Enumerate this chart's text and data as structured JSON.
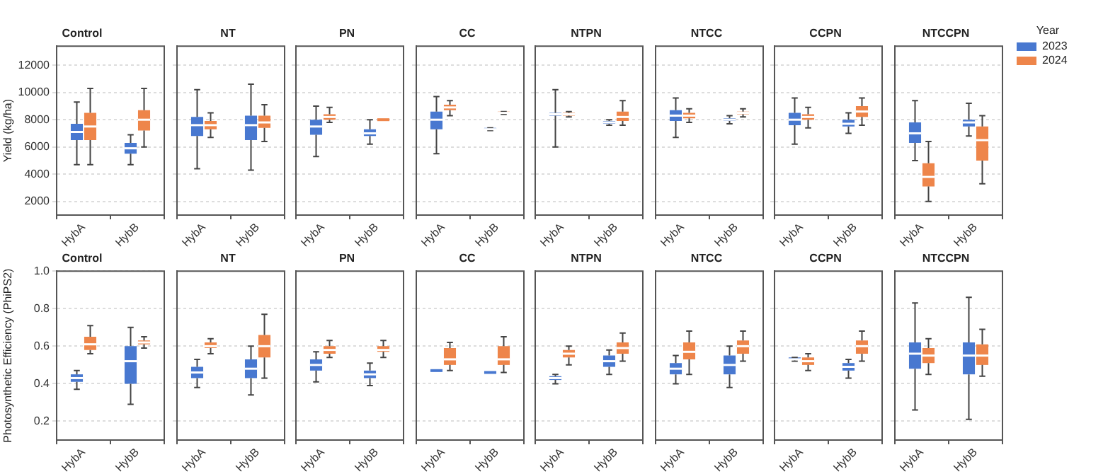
{
  "chart_data": [
    {
      "type": "box",
      "title": "Control",
      "ylabel": "Yield (kg/ha)",
      "categories": [
        "HybA",
        "HybB"
      ],
      "ylim": [
        1000,
        13400
      ],
      "yticks": [
        2000,
        4000,
        6000,
        8000,
        10000,
        12000
      ],
      "grid": "y",
      "series": [
        {
          "color": "#4878d0",
          "boxes": [
            {
              "low": 4700,
              "q1": 6500,
              "median": 7100,
              "q3": 7700,
              "high": 9300
            },
            {
              "low": 4700,
              "q1": 5500,
              "median": 5900,
              "q3": 6300,
              "high": 6900
            }
          ]
        },
        {
          "color": "#ee854a",
          "boxes": [
            {
              "low": 4700,
              "q1": 6500,
              "median": 7500,
              "q3": 8500,
              "high": 10300
            },
            {
              "low": 6000,
              "q1": 7200,
              "median": 8000,
              "q3": 8700,
              "high": 10300
            }
          ]
        }
      ]
    },
    {
      "type": "box",
      "title": "NT",
      "categories": [
        "HybA",
        "HybB"
      ],
      "ylim": [
        1000,
        13400
      ],
      "yticks": [
        2000,
        4000,
        6000,
        8000,
        10000,
        12000
      ],
      "grid": "y",
      "tick_labels": "x",
      "series": [
        {
          "color": "#4878d0",
          "boxes": [
            {
              "low": 4400,
              "q1": 6800,
              "median": 7600,
              "q3": 8200,
              "high": 10200
            },
            {
              "low": 4300,
              "q1": 6500,
              "median": 7600,
              "q3": 8300,
              "high": 10600
            }
          ]
        },
        {
          "color": "#ee854a",
          "boxes": [
            {
              "low": 6700,
              "q1": 7300,
              "median": 7600,
              "q3": 7900,
              "high": 8500
            },
            {
              "low": 6400,
              "q1": 7400,
              "median": 7800,
              "q3": 8300,
              "high": 9100
            }
          ]
        }
      ]
    },
    {
      "type": "box",
      "title": "PN",
      "categories": [
        "HybA",
        "HybB"
      ],
      "ylim": [
        1000,
        13400
      ],
      "yticks": [
        2000,
        4000,
        6000,
        8000,
        10000,
        12000
      ],
      "grid": "y",
      "tick_labels": "x",
      "series": [
        {
          "color": "#4878d0",
          "boxes": [
            {
              "low": 5300,
              "q1": 6900,
              "median": 7500,
              "q3": 8000,
              "high": 9000
            },
            {
              "low": 6200,
              "q1": 6800,
              "median": 7000,
              "q3": 7300,
              "high": 8000
            }
          ]
        },
        {
          "color": "#ee854a",
          "boxes": [
            {
              "low": 7800,
              "q1": 8000,
              "median": 8200,
              "q3": 8400,
              "high": 8900
            },
            {
              "low": 8000,
              "q1": 8000,
              "median": 8000,
              "q3": 8000,
              "high": 8000
            }
          ]
        }
      ]
    },
    {
      "type": "box",
      "title": "CC",
      "categories": [
        "HybA",
        "HybB"
      ],
      "ylim": [
        1000,
        13400
      ],
      "yticks": [
        2000,
        4000,
        6000,
        8000,
        10000,
        12000
      ],
      "grid": "y",
      "tick_labels": "x",
      "series": [
        {
          "color": "#4878d0",
          "boxes": [
            {
              "low": 5500,
              "q1": 7300,
              "median": 8000,
              "q3": 8600,
              "high": 9700
            },
            {
              "low": 7200,
              "q1": 7300,
              "median": 7300,
              "q3": 7400,
              "high": 7400
            }
          ]
        },
        {
          "color": "#ee854a",
          "boxes": [
            {
              "low": 8300,
              "q1": 8700,
              "median": 8900,
              "q3": 9100,
              "high": 9400
            },
            {
              "low": 8400,
              "q1": 8500,
              "median": 8500,
              "q3": 8600,
              "high": 8600
            }
          ]
        }
      ]
    },
    {
      "type": "box",
      "title": "NTPN",
      "categories": [
        "HybA",
        "HybB"
      ],
      "ylim": [
        1000,
        13400
      ],
      "yticks": [
        2000,
        4000,
        6000,
        8000,
        10000,
        12000
      ],
      "grid": "y",
      "tick_labels": "x",
      "series": [
        {
          "color": "#4878d0",
          "boxes": [
            {
              "low": 6000,
              "q1": 8300,
              "median": 8400,
              "q3": 8500,
              "high": 10200
            },
            {
              "low": 7600,
              "q1": 7700,
              "median": 7800,
              "q3": 7900,
              "high": 8000
            }
          ]
        },
        {
          "color": "#ee854a",
          "boxes": [
            {
              "low": 8200,
              "q1": 8300,
              "median": 8400,
              "q3": 8500,
              "high": 8600
            },
            {
              "low": 7600,
              "q1": 7900,
              "median": 8200,
              "q3": 8600,
              "high": 9400
            }
          ]
        }
      ]
    },
    {
      "type": "box",
      "title": "NTCC",
      "categories": [
        "HybA",
        "HybB"
      ],
      "ylim": [
        1000,
        13400
      ],
      "yticks": [
        2000,
        4000,
        6000,
        8000,
        10000,
        12000
      ],
      "grid": "y",
      "tick_labels": "x",
      "series": [
        {
          "color": "#4878d0",
          "boxes": [
            {
              "low": 6700,
              "q1": 7900,
              "median": 8300,
              "q3": 8700,
              "high": 9600
            },
            {
              "low": 7700,
              "q1": 7900,
              "median": 8000,
              "q3": 8100,
              "high": 8300
            }
          ]
        },
        {
          "color": "#ee854a",
          "boxes": [
            {
              "low": 7800,
              "q1": 8100,
              "median": 8300,
              "q3": 8500,
              "high": 8800
            },
            {
              "low": 8200,
              "q1": 8400,
              "median": 8500,
              "q3": 8600,
              "high": 8800
            }
          ]
        }
      ]
    },
    {
      "type": "box",
      "title": "CCPN",
      "categories": [
        "HybA",
        "HybB"
      ],
      "ylim": [
        1000,
        13400
      ],
      "yticks": [
        2000,
        4000,
        6000,
        8000,
        10000,
        12000
      ],
      "grid": "y",
      "tick_labels": "x",
      "series": [
        {
          "color": "#4878d0",
          "boxes": [
            {
              "low": 6200,
              "q1": 7600,
              "median": 8000,
              "q3": 8500,
              "high": 9600
            },
            {
              "low": 7000,
              "q1": 7500,
              "median": 7700,
              "q3": 8000,
              "high": 8500
            }
          ]
        },
        {
          "color": "#ee854a",
          "boxes": [
            {
              "low": 7400,
              "q1": 8000,
              "median": 8200,
              "q3": 8400,
              "high": 8900
            },
            {
              "low": 7600,
              "q1": 8200,
              "median": 8600,
              "q3": 9000,
              "high": 9600
            }
          ]
        }
      ]
    },
    {
      "type": "box",
      "title": "NTCCPN",
      "categories": [
        "HybA",
        "HybB"
      ],
      "ylim": [
        1000,
        13400
      ],
      "yticks": [
        2000,
        4000,
        6000,
        8000,
        10000,
        12000
      ],
      "grid": "y",
      "tick_labels": "x",
      "legend": "top right",
      "legend_title": "Year",
      "series": [
        {
          "name": "2023",
          "color": "#4878d0",
          "boxes": [
            {
              "low": 5000,
              "q1": 6300,
              "median": 7000,
              "q3": 7800,
              "high": 9400
            },
            {
              "low": 6800,
              "q1": 7500,
              "median": 7800,
              "q3": 8000,
              "high": 9200
            }
          ]
        },
        {
          "name": "2024",
          "color": "#ee854a",
          "boxes": [
            {
              "low": 2000,
              "q1": 3100,
              "median": 3800,
              "q3": 4800,
              "high": 6400
            },
            {
              "low": 3300,
              "q1": 5000,
              "median": 6500,
              "q3": 7500,
              "high": 8300
            }
          ]
        }
      ]
    },
    {
      "type": "box",
      "title": "Control",
      "ylabel": "Photosynthetic Efficiency (PhiPS2)",
      "categories": [
        "HybA",
        "HybB"
      ],
      "ylim": [
        0.1,
        1.0
      ],
      "yticks": [
        0.2,
        0.4,
        0.6,
        0.8,
        {
          "value": 1,
          "label": "1.0"
        }
      ],
      "grid": "y",
      "series": [
        {
          "color": "#4878d0",
          "boxes": [
            {
              "low": 0.37,
              "q1": 0.41,
              "median": 0.43,
              "q3": 0.45,
              "high": 0.47
            },
            {
              "low": 0.29,
              "q1": 0.4,
              "median": 0.52,
              "q3": 0.6,
              "high": 0.7
            }
          ]
        },
        {
          "color": "#ee854a",
          "boxes": [
            {
              "low": 0.56,
              "q1": 0.58,
              "median": 0.61,
              "q3": 0.65,
              "high": 0.71
            },
            {
              "low": 0.59,
              "q1": 0.61,
              "median": 0.62,
              "q3": 0.63,
              "high": 0.65
            }
          ]
        }
      ]
    },
    {
      "type": "box",
      "title": "NT",
      "categories": [
        "HybA",
        "HybB"
      ],
      "ylim": [
        0.1,
        1.0
      ],
      "yticks": [
        0.2,
        0.4,
        0.6,
        0.8
      ],
      "grid": "y",
      "tick_labels": "x",
      "series": [
        {
          "color": "#4878d0",
          "boxes": [
            {
              "low": 0.38,
              "q1": 0.43,
              "median": 0.46,
              "q3": 0.49,
              "high": 0.53
            },
            {
              "low": 0.34,
              "q1": 0.43,
              "median": 0.48,
              "q3": 0.53,
              "high": 0.6
            }
          ]
        },
        {
          "color": "#ee854a",
          "boxes": [
            {
              "low": 0.56,
              "q1": 0.59,
              "median": 0.6,
              "q3": 0.62,
              "high": 0.64
            },
            {
              "low": 0.43,
              "q1": 0.54,
              "median": 0.6,
              "q3": 0.66,
              "high": 0.77
            }
          ]
        }
      ]
    },
    {
      "type": "box",
      "title": "PN",
      "categories": [
        "HybA",
        "HybB"
      ],
      "ylim": [
        0.1,
        1.0
      ],
      "yticks": [
        0.2,
        0.4,
        0.6,
        0.8
      ],
      "grid": "y",
      "tick_labels": "x",
      "series": [
        {
          "color": "#4878d0",
          "boxes": [
            {
              "low": 0.41,
              "q1": 0.47,
              "median": 0.5,
              "q3": 0.53,
              "high": 0.57
            },
            {
              "low": 0.39,
              "q1": 0.43,
              "median": 0.45,
              "q3": 0.47,
              "high": 0.51
            }
          ]
        },
        {
          "color": "#ee854a",
          "boxes": [
            {
              "low": 0.54,
              "q1": 0.56,
              "median": 0.58,
              "q3": 0.6,
              "high": 0.63
            },
            {
              "low": 0.54,
              "q1": 0.57,
              "median": 0.58,
              "q3": 0.6,
              "high": 0.63
            }
          ]
        }
      ]
    },
    {
      "type": "box",
      "title": "CC",
      "categories": [
        "HybA",
        "HybB"
      ],
      "ylim": [
        0.1,
        1.0
      ],
      "yticks": [
        0.2,
        0.4,
        0.6,
        0.8
      ],
      "grid": "y",
      "tick_labels": "x",
      "series": [
        {
          "color": "#4878d0",
          "boxes": [
            {
              "low": 0.47,
              "q1": 0.47,
              "median": 0.47,
              "q3": 0.47,
              "high": 0.47
            },
            {
              "low": 0.46,
              "q1": 0.46,
              "median": 0.46,
              "q3": 0.46,
              "high": 0.46
            }
          ]
        },
        {
          "color": "#ee854a",
          "boxes": [
            {
              "low": 0.47,
              "q1": 0.5,
              "median": 0.53,
              "q3": 0.59,
              "high": 0.62
            },
            {
              "low": 0.46,
              "q1": 0.5,
              "median": 0.53,
              "q3": 0.6,
              "high": 0.65
            }
          ]
        }
      ]
    },
    {
      "type": "box",
      "title": "NTPN",
      "categories": [
        "HybA",
        "HybB"
      ],
      "ylim": [
        0.1,
        1.0
      ],
      "yticks": [
        0.2,
        0.4,
        0.6,
        0.8
      ],
      "grid": "y",
      "tick_labels": "x",
      "series": [
        {
          "color": "#4878d0",
          "boxes": [
            {
              "low": 0.4,
              "q1": 0.42,
              "median": 0.43,
              "q3": 0.44,
              "high": 0.45
            },
            {
              "low": 0.45,
              "q1": 0.49,
              "median": 0.52,
              "q3": 0.55,
              "high": 0.58
            }
          ]
        },
        {
          "color": "#ee854a",
          "boxes": [
            {
              "low": 0.5,
              "q1": 0.54,
              "median": 0.56,
              "q3": 0.58,
              "high": 0.6
            },
            {
              "low": 0.52,
              "q1": 0.56,
              "median": 0.59,
              "q3": 0.62,
              "high": 0.67
            }
          ]
        }
      ]
    },
    {
      "type": "box",
      "title": "NTCC",
      "categories": [
        "HybA",
        "HybB"
      ],
      "ylim": [
        0.1,
        1.0
      ],
      "yticks": [
        0.2,
        0.4,
        0.6,
        0.8
      ],
      "grid": "y",
      "tick_labels": "x",
      "series": [
        {
          "color": "#4878d0",
          "boxes": [
            {
              "low": 0.4,
              "q1": 0.45,
              "median": 0.48,
              "q3": 0.51,
              "high": 0.55
            },
            {
              "low": 0.38,
              "q1": 0.45,
              "median": 0.5,
              "q3": 0.55,
              "high": 0.6
            }
          ]
        },
        {
          "color": "#ee854a",
          "boxes": [
            {
              "low": 0.45,
              "q1": 0.53,
              "median": 0.57,
              "q3": 0.62,
              "high": 0.68
            },
            {
              "low": 0.52,
              "q1": 0.56,
              "median": 0.6,
              "q3": 0.63,
              "high": 0.68
            }
          ]
        }
      ]
    },
    {
      "type": "box",
      "title": "CCPN",
      "categories": [
        "HybA",
        "HybB"
      ],
      "ylim": [
        0.1,
        1.0
      ],
      "yticks": [
        0.2,
        0.4,
        0.6,
        0.8
      ],
      "grid": "y",
      "tick_labels": "x",
      "series": [
        {
          "color": "#4878d0",
          "boxes": [
            {
              "low": 0.52,
              "q1": 0.53,
              "median": 0.53,
              "q3": 0.54,
              "high": 0.54
            },
            {
              "low": 0.43,
              "q1": 0.47,
              "median": 0.49,
              "q3": 0.51,
              "high": 0.53
            }
          ]
        },
        {
          "color": "#ee854a",
          "boxes": [
            {
              "low": 0.47,
              "q1": 0.5,
              "median": 0.52,
              "q3": 0.54,
              "high": 0.56
            },
            {
              "low": 0.52,
              "q1": 0.56,
              "median": 0.6,
              "q3": 0.63,
              "high": 0.68
            }
          ]
        }
      ]
    },
    {
      "type": "box",
      "title": "NTCCPN",
      "categories": [
        "HybA",
        "HybB"
      ],
      "ylim": [
        0.1,
        1.0
      ],
      "yticks": [
        0.2,
        0.4,
        0.6,
        0.8
      ],
      "grid": "y",
      "tick_labels": "x",
      "series": [
        {
          "color": "#4878d0",
          "boxes": [
            {
              "low": 0.26,
              "q1": 0.48,
              "median": 0.56,
              "q3": 0.62,
              "high": 0.83
            },
            {
              "low": 0.21,
              "q1": 0.45,
              "median": 0.55,
              "q3": 0.62,
              "high": 0.86
            }
          ]
        },
        {
          "color": "#ee854a",
          "boxes": [
            {
              "low": 0.45,
              "q1": 0.51,
              "median": 0.55,
              "q3": 0.59,
              "high": 0.64
            },
            {
              "low": 0.44,
              "q1": 0.5,
              "median": 0.55,
              "q3": 0.61,
              "high": 0.69
            }
          ]
        }
      ]
    }
  ]
}
